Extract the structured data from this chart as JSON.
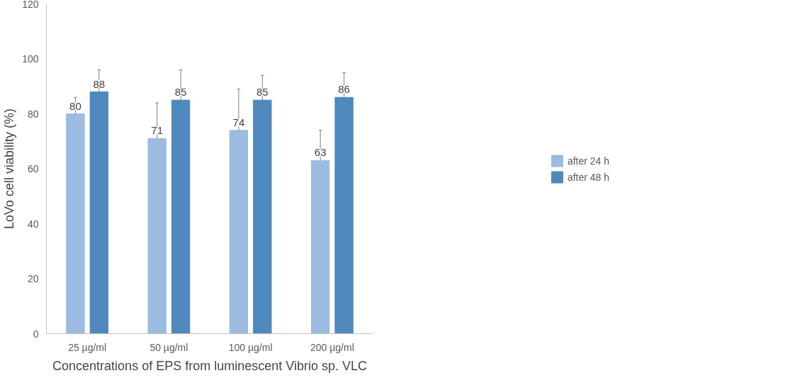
{
  "chart_data": {
    "type": "bar",
    "xlabel": "Concentrations of EPS from luminescent Vibrio sp. VLC",
    "ylabel": "LoVo cell viability (%)",
    "categories": [
      "25 µg/ml",
      "50 µg/ml",
      "100 µg/ml",
      "200 µg/ml"
    ],
    "series": [
      {
        "name": "after 24 h",
        "color": "#9bbbe0",
        "values": [
          80,
          71,
          74,
          63
        ],
        "errors": [
          [
            80,
            86
          ],
          [
            71,
            84
          ],
          [
            74,
            89
          ],
          [
            63,
            74
          ]
        ]
      },
      {
        "name": "after 48 h",
        "color": "#4f88bd",
        "values": [
          88,
          85,
          85,
          86
        ],
        "errors": [
          [
            88,
            96
          ],
          [
            85,
            96
          ],
          [
            85,
            94
          ],
          [
            86,
            95
          ]
        ]
      }
    ],
    "ylim": [
      0,
      120
    ],
    "yticks": [
      0,
      20,
      40,
      60,
      80,
      100,
      120
    ],
    "data_labels": true,
    "legend": "right",
    "grid": false
  }
}
